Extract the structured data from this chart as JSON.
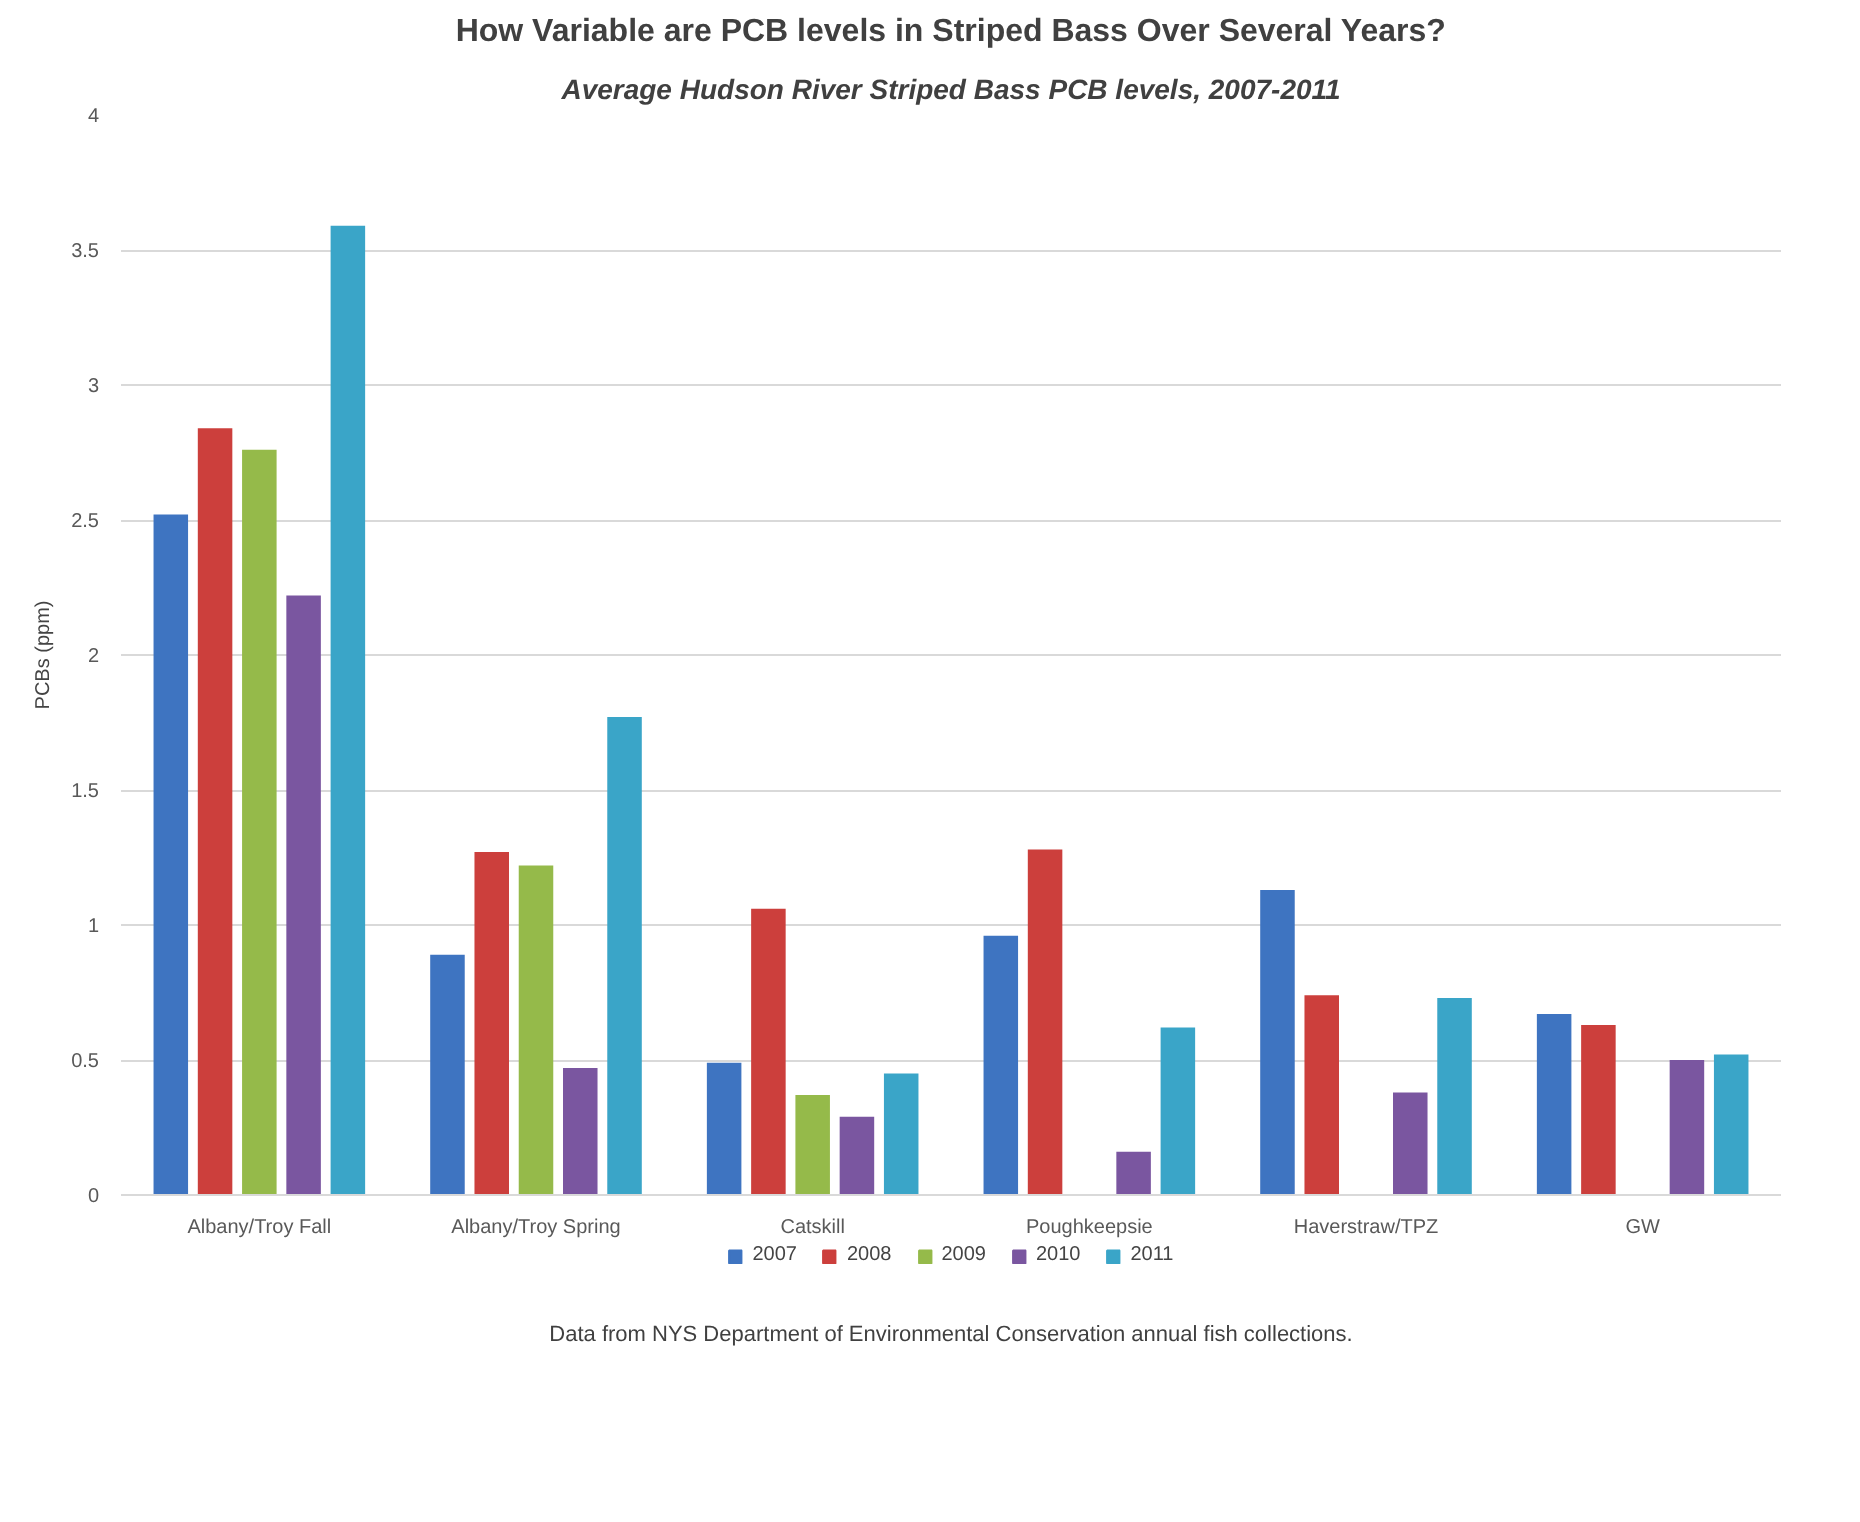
{
  "chart_data": {
    "type": "bar",
    "title": "How Variable are PCB levels in Striped Bass Over Several Years?",
    "subtitle": "Average Hudson River Striped Bass PCB levels, 2007-2011",
    "ylabel": "PCBs (ppm)",
    "categories": [
      "Albany/Troy Fall",
      "Albany/Troy Spring",
      "Catskill",
      "Poughkeepsie",
      "Haverstraw/TPZ",
      "GW"
    ],
    "series": [
      {
        "name": "2007",
        "color": "#3e74c1",
        "values": [
          2.52,
          0.89,
          0.49,
          0.96,
          1.13,
          0.67
        ]
      },
      {
        "name": "2008",
        "color": "#cc3f3c",
        "values": [
          2.84,
          1.27,
          1.06,
          1.28,
          0.74,
          0.63
        ]
      },
      {
        "name": "2009",
        "color": "#95ba4a",
        "values": [
          2.76,
          1.22,
          0.37,
          null,
          null,
          null
        ]
      },
      {
        "name": "2010",
        "color": "#7a56a0",
        "values": [
          2.22,
          0.47,
          0.29,
          0.16,
          0.38,
          0.5
        ]
      },
      {
        "name": "2011",
        "color": "#3aa5c8",
        "values": [
          3.59,
          1.77,
          0.45,
          0.62,
          0.73,
          0.52
        ]
      }
    ],
    "ylim": [
      0,
      4
    ],
    "yticks": [
      0,
      0.5,
      1,
      1.5,
      2,
      2.5,
      3,
      3.5,
      4
    ],
    "grid": "y",
    "legend": "bottom",
    "annotations": [
      "Data from NYS Department of Environmental Conservation annual fish collections."
    ]
  }
}
